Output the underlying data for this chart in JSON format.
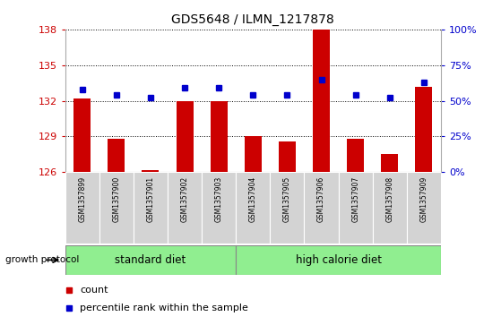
{
  "title": "GDS5648 / ILMN_1217878",
  "samples": [
    "GSM1357899",
    "GSM1357900",
    "GSM1357901",
    "GSM1357902",
    "GSM1357903",
    "GSM1357904",
    "GSM1357905",
    "GSM1357906",
    "GSM1357907",
    "GSM1357908",
    "GSM1357909"
  ],
  "counts": [
    132.2,
    128.8,
    126.2,
    132.0,
    132.0,
    129.0,
    128.6,
    138.0,
    128.8,
    127.5,
    133.2
  ],
  "percentiles": [
    58,
    54,
    52,
    59,
    59,
    54,
    54,
    65,
    54,
    52,
    63
  ],
  "ylim_left": [
    126,
    138
  ],
  "ylim_right": [
    0,
    100
  ],
  "yticks_left": [
    126,
    129,
    132,
    135,
    138
  ],
  "yticks_right": [
    0,
    25,
    50,
    75,
    100
  ],
  "ytick_labels_right": [
    "0%",
    "25%",
    "50%",
    "75%",
    "100%"
  ],
  "bar_color": "#cc0000",
  "dot_color": "#0000cc",
  "bar_width": 0.5,
  "baseline": 126,
  "group1_label": "standard diet",
  "group2_label": "high calorie diet",
  "group1_indices": [
    0,
    1,
    2,
    3,
    4
  ],
  "group2_indices": [
    5,
    6,
    7,
    8,
    9,
    10
  ],
  "group_protocol_label": "growth protocol",
  "group1_color": "#90ee90",
  "group2_color": "#90ee90",
  "axis_label_color_left": "#cc0000",
  "axis_label_color_right": "#0000cc",
  "grid_color": "#000000",
  "tick_area_color": "#d3d3d3",
  "legend_count_label": "count",
  "legend_pct_label": "percentile rank within the sample",
  "fig_width": 5.59,
  "fig_height": 3.63,
  "dpi": 100
}
